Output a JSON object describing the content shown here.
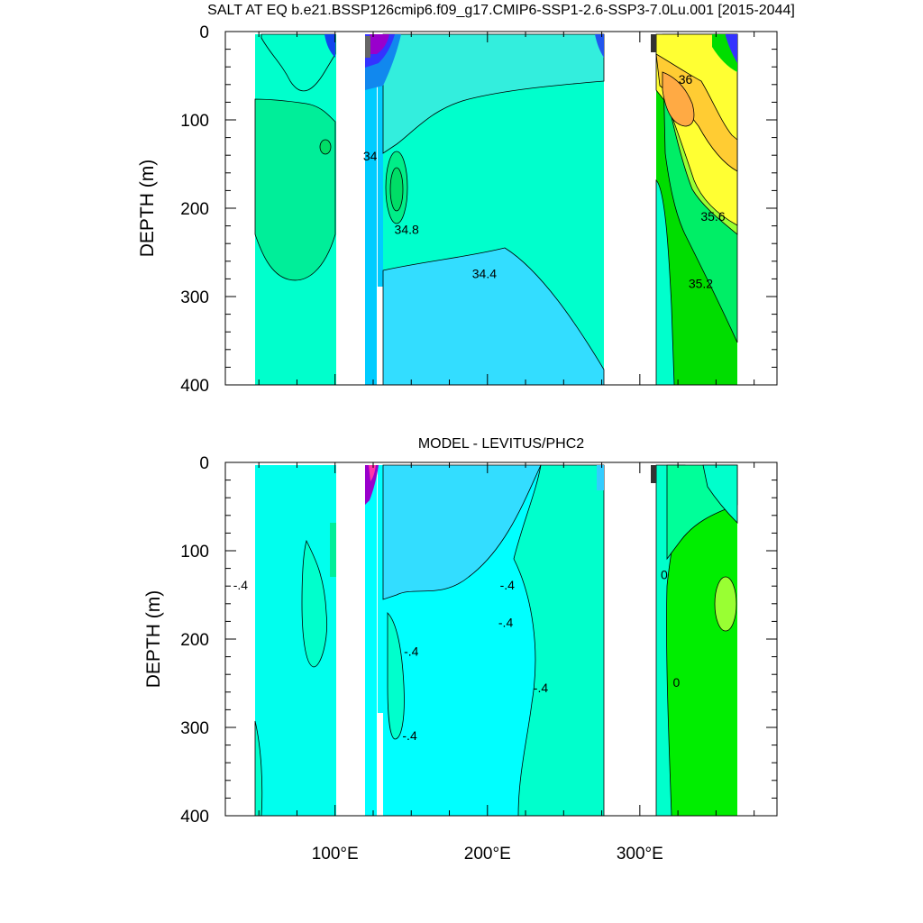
{
  "chart_data": [
    {
      "type": "heatmap",
      "title": "SALT AT EQ b.e21.BSSP126cmip6.f09_g17.CMIP6-SSP1-2.6-SSP3-7.0Lu.001 [2015-2044]",
      "ylabel": "DEPTH (m)",
      "xlabel": "",
      "ylim": [
        0,
        400
      ],
      "y_inverted": true,
      "xlim": [
        28,
        390
      ],
      "y_ticks": [
        "0",
        "100",
        "200",
        "300",
        "400"
      ],
      "y_tick_values": [
        0,
        100,
        200,
        300,
        400
      ],
      "contour_labels": [
        {
          "text": "36",
          "lon": 330,
          "depth": 55
        },
        {
          "text": "34",
          "lon": 123,
          "depth": 142
        },
        {
          "text": "34.8",
          "lon": 147,
          "depth": 225
        },
        {
          "text": "35.6",
          "lon": 348,
          "depth": 210
        },
        {
          "text": "34.4",
          "lon": 198,
          "depth": 275
        },
        {
          "text": "35.2",
          "lon": 340,
          "depth": 286
        }
      ],
      "colors": {
        "background_tropical": "#00ffcc",
        "pacific_main": "#33ddff",
        "indian_ocean": "#00ee99",
        "atlantic_warm": "#ffff33",
        "atlantic_hot": "#ffaa44",
        "atlantic_deep": "#00dd00",
        "fresh_blue": "#1188ee",
        "fresh_purple": "#9900cc"
      }
    },
    {
      "type": "heatmap",
      "title": "MODEL - LEVITUS/PHC2",
      "ylabel": "DEPTH (m)",
      "xlabel": "",
      "ylim": [
        0,
        400
      ],
      "y_inverted": true,
      "xlim": [
        28,
        390
      ],
      "y_ticks": [
        "0",
        "100",
        "200",
        "300",
        "400"
      ],
      "y_tick_values": [
        0,
        100,
        200,
        300,
        400
      ],
      "x_ticks": [
        "100°E",
        "200°E",
        "300°E"
      ],
      "x_tick_values": [
        100,
        200,
        300
      ],
      "contour_labels": [
        {
          "text": "-.4",
          "lon": 38,
          "depth": 140
        },
        {
          "text": "0",
          "lon": 316,
          "depth": 128
        },
        {
          "text": "-.4",
          "lon": 213,
          "depth": 140
        },
        {
          "text": "-.4",
          "lon": 212,
          "depth": 182
        },
        {
          "text": "-.4",
          "lon": 150,
          "depth": 215
        },
        {
          "text": "0",
          "lon": 324,
          "depth": 250
        },
        {
          "text": "-.4",
          "lon": 235,
          "depth": 256
        },
        {
          "text": "-.4",
          "lon": 149,
          "depth": 310
        }
      ],
      "colors": {
        "background_tropical": "#00ffcc",
        "pacific_cyan": "#00ffff",
        "indian_cyan": "#00ffee",
        "atlantic_green": "#00ee00",
        "atlantic_light": "#99ff33"
      }
    }
  ]
}
